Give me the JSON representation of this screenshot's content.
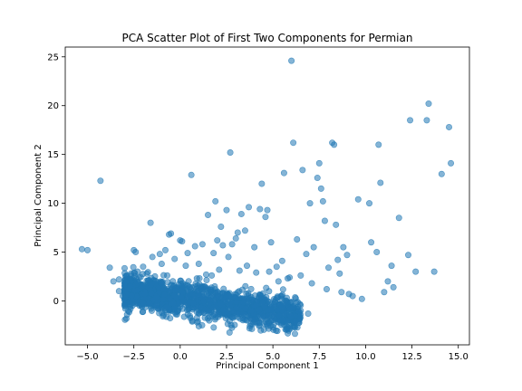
{
  "chart_data": {
    "type": "scatter",
    "title": "PCA Scatter Plot of First Two Components for Permian",
    "xlabel": "Principal Component 1",
    "ylabel": "Principal Component 2",
    "xlim": [
      -6.2,
      15.6
    ],
    "ylim": [
      -4.5,
      26.0
    ],
    "xticks": [
      -5.0,
      -2.5,
      0.0,
      2.5,
      5.0,
      7.5,
      10.0,
      12.5,
      15.0
    ],
    "xtick_labels": [
      "−5.0",
      "−2.5",
      "0.0",
      "2.5",
      "5.0",
      "7.5",
      "10.0",
      "12.5",
      "15.0"
    ],
    "yticks": [
      0,
      5,
      10,
      15,
      20,
      25
    ],
    "ytick_labels": [
      "0",
      "5",
      "10",
      "15",
      "20",
      "25"
    ],
    "grid": false,
    "legend": "none",
    "marker_color": "#1f77b4",
    "marker_alpha": 0.55,
    "series": [
      {
        "points": [
          [
            -5.3,
            5.3
          ],
          [
            -5.0,
            5.2
          ],
          [
            -4.3,
            12.3
          ],
          [
            -3.8,
            3.4
          ],
          [
            -3.6,
            2.0
          ],
          [
            -3.3,
            1.0
          ],
          [
            -3.3,
            2.2
          ],
          [
            -3.1,
            0.5
          ],
          [
            -3.0,
            -0.5
          ],
          [
            -3.0,
            1.8
          ],
          [
            -2.9,
            2.5
          ],
          [
            -2.7,
            1.5
          ],
          [
            -2.5,
            5.2
          ],
          [
            -2.4,
            5.0
          ],
          [
            -2.3,
            3.0
          ],
          [
            -2.0,
            3.5
          ],
          [
            -1.8,
            2.8
          ],
          [
            -1.6,
            8.0
          ],
          [
            -1.5,
            4.5
          ],
          [
            -1.3,
            2.0
          ],
          [
            -1.1,
            4.8
          ],
          [
            -1.0,
            3.8
          ],
          [
            -0.8,
            5.2
          ],
          [
            -0.6,
            6.8
          ],
          [
            -0.5,
            6.9
          ],
          [
            -0.3,
            4.3
          ],
          [
            0.0,
            6.2
          ],
          [
            0.1,
            6.1
          ],
          [
            0.4,
            4.9
          ],
          [
            0.6,
            12.9
          ],
          [
            0.8,
            5.6
          ],
          [
            1.0,
            3.8
          ],
          [
            1.2,
            5.8
          ],
          [
            1.5,
            8.8
          ],
          [
            1.8,
            4.9
          ],
          [
            1.9,
            10.2
          ],
          [
            2.0,
            6.2
          ],
          [
            2.2,
            7.6
          ],
          [
            2.3,
            5.7
          ],
          [
            2.5,
            9.3
          ],
          [
            2.6,
            4.5
          ],
          [
            2.7,
            15.2
          ],
          [
            2.8,
            5.8
          ],
          [
            3.0,
            6.4
          ],
          [
            3.1,
            7.0
          ],
          [
            3.3,
            8.9
          ],
          [
            3.5,
            7.2
          ],
          [
            3.7,
            9.6
          ],
          [
            4.0,
            5.5
          ],
          [
            4.3,
            9.4
          ],
          [
            4.4,
            12.0
          ],
          [
            4.6,
            8.6
          ],
          [
            4.7,
            9.3
          ],
          [
            4.9,
            6.0
          ],
          [
            5.2,
            3.5
          ],
          [
            5.5,
            4.1
          ],
          [
            5.6,
            13.1
          ],
          [
            5.8,
            2.3
          ],
          [
            6.0,
            24.6
          ],
          [
            6.1,
            16.2
          ],
          [
            6.3,
            6.3
          ],
          [
            6.6,
            13.4
          ],
          [
            6.8,
            4.8
          ],
          [
            7.0,
            10.0
          ],
          [
            7.2,
            5.5
          ],
          [
            7.4,
            12.6
          ],
          [
            7.5,
            14.1
          ],
          [
            7.6,
            11.5
          ],
          [
            7.7,
            10.2
          ],
          [
            7.8,
            8.2
          ],
          [
            8.0,
            3.4
          ],
          [
            8.2,
            16.2
          ],
          [
            8.3,
            16.0
          ],
          [
            8.4,
            7.8
          ],
          [
            8.5,
            4.2
          ],
          [
            8.6,
            2.8
          ],
          [
            8.8,
            5.5
          ],
          [
            9.0,
            4.7
          ],
          [
            9.3,
            0.5
          ],
          [
            9.6,
            10.4
          ],
          [
            9.8,
            0.2
          ],
          [
            10.2,
            10.0
          ],
          [
            10.3,
            6.0
          ],
          [
            10.6,
            5.0
          ],
          [
            10.7,
            16.0
          ],
          [
            10.8,
            12.1
          ],
          [
            11.0,
            0.9
          ],
          [
            11.2,
            2.0
          ],
          [
            11.4,
            3.6
          ],
          [
            11.5,
            1.4
          ],
          [
            11.8,
            8.5
          ],
          [
            12.3,
            4.7
          ],
          [
            12.4,
            18.5
          ],
          [
            12.7,
            3.0
          ],
          [
            13.3,
            18.5
          ],
          [
            13.4,
            20.2
          ],
          [
            13.7,
            3.0
          ],
          [
            14.1,
            13.0
          ],
          [
            14.5,
            17.8
          ],
          [
            14.6,
            14.1
          ],
          [
            0.3,
            3.6
          ],
          [
            1.4,
            2.7
          ],
          [
            2.1,
            3.2
          ],
          [
            3.2,
            3.1
          ],
          [
            4.1,
            2.9
          ],
          [
            4.8,
            3.0
          ],
          [
            5.9,
            2.4
          ],
          [
            6.5,
            2.6
          ],
          [
            7.1,
            1.8
          ],
          [
            7.9,
            1.2
          ],
          [
            8.7,
            0.9
          ],
          [
            9.1,
            0.7
          ],
          [
            -1.9,
            0.7
          ],
          [
            -0.7,
            2.6
          ],
          [
            0.9,
            2.3
          ],
          [
            1.7,
            2.6
          ],
          [
            3.6,
            3.6
          ],
          [
            5.3,
            2.0
          ],
          [
            6.9,
            -1.3
          ]
        ]
      }
    ]
  }
}
